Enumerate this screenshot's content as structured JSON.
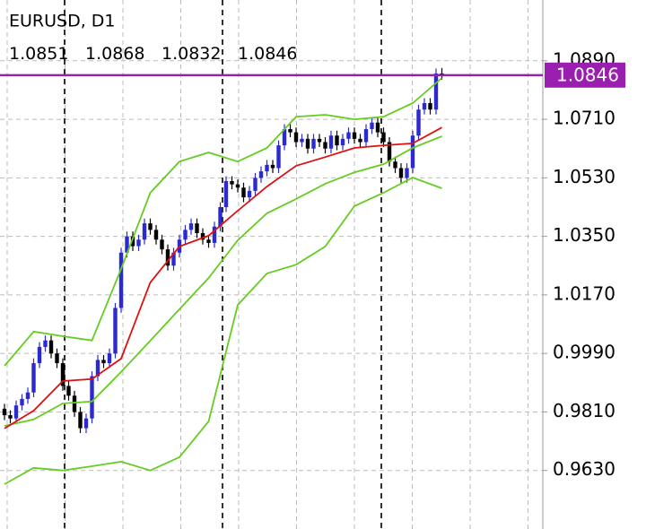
{
  "chart_data": {
    "type": "candlestick",
    "title": "EURUSD, D1",
    "ylim": [
      0.945,
      1.1077
    ],
    "yticks": [
      {
        "value": 1.089,
        "label": "1.0890"
      },
      {
        "value": 1.071,
        "label": "1.0710"
      },
      {
        "value": 1.053,
        "label": "1.0530"
      },
      {
        "value": 1.035,
        "label": "1.0350"
      },
      {
        "value": 1.017,
        "label": "1.0170"
      },
      {
        "value": 0.999,
        "label": "0.9990"
      },
      {
        "value": 0.981,
        "label": "0.9810"
      },
      {
        "value": 0.963,
        "label": "0.9630"
      }
    ],
    "grid": true,
    "up_color": "#2a2ad0",
    "down_color": "#000000",
    "price_line_color": "#9a1fb0",
    "open": [
      0.982,
      0.98,
      0.979,
      0.983,
      0.985,
      0.987,
      0.996,
      1.001,
      1.003,
      0.999,
      0.996,
      0.989,
      0.986,
      0.981,
      0.976,
      0.979,
      0.992,
      0.997,
      0.996,
      0.999,
      1.013,
      1.03,
      1.035,
      1.032,
      1.034,
      1.039,
      1.037,
      1.034,
      1.031,
      1.026,
      1.03,
      1.034,
      1.037,
      1.039,
      1.036,
      1.034,
      1.033,
      1.038,
      1.044,
      1.052,
      1.051,
      1.05,
      1.047,
      1.049,
      1.053,
      1.055,
      1.057,
      1.056,
      1.063,
      1.068,
      1.067,
      1.064,
      1.065,
      1.062,
      1.065,
      1.064,
      1.062,
      1.066,
      1.063,
      1.065,
      1.067,
      1.065,
      1.064,
      1.068,
      1.07,
      1.067,
      1.064,
      1.058,
      1.056,
      1.053,
      1.056,
      1.066,
      1.074,
      1.076,
      1.074,
      1.0851
    ],
    "high": [
      0.9835,
      0.9815,
      0.9845,
      0.9865,
      0.9885,
      0.9975,
      1.0025,
      1.0045,
      1.0045,
      1.0005,
      0.9975,
      0.9905,
      0.9875,
      0.9825,
      0.9805,
      0.9935,
      0.9985,
      0.9985,
      1.0005,
      1.0145,
      1.0315,
      1.0365,
      1.0365,
      1.0355,
      1.0405,
      1.0405,
      1.0385,
      1.0355,
      1.0325,
      1.0315,
      1.0355,
      1.0385,
      1.0405,
      1.0405,
      1.0375,
      1.0355,
      1.0395,
      1.0455,
      1.0535,
      1.0535,
      1.0525,
      1.0515,
      1.0505,
      1.0545,
      1.0565,
      1.0585,
      1.0585,
      1.0645,
      1.0695,
      1.0695,
      1.0685,
      1.0665,
      1.0665,
      1.0665,
      1.0665,
      1.0655,
      1.0675,
      1.0675,
      1.0665,
      1.0685,
      1.0685,
      1.0665,
      1.0695,
      1.0715,
      1.0715,
      1.0685,
      1.0655,
      1.0595,
      1.0575,
      1.0575,
      1.0675,
      1.0755,
      1.0775,
      1.0775,
      1.0866,
      1.0868
    ],
    "low": [
      0.9785,
      0.9775,
      0.9775,
      0.9815,
      0.9835,
      0.9855,
      0.9945,
      0.9995,
      0.9975,
      0.9945,
      0.9875,
      0.9845,
      0.9795,
      0.9745,
      0.9745,
      0.9775,
      0.9905,
      0.9945,
      0.9945,
      0.9975,
      1.0115,
      1.0285,
      1.0305,
      1.0305,
      1.0325,
      1.0355,
      1.0325,
      1.0295,
      1.0245,
      1.0245,
      1.0285,
      1.0325,
      1.0355,
      1.0345,
      1.0325,
      1.0315,
      1.0315,
      1.0365,
      1.0425,
      1.0495,
      1.0485,
      1.0455,
      1.0455,
      1.0475,
      1.0515,
      1.0535,
      1.0545,
      1.0545,
      1.0615,
      1.0655,
      1.0625,
      1.0625,
      1.0605,
      1.0605,
      1.0625,
      1.0605,
      1.0605,
      1.0615,
      1.0615,
      1.0635,
      1.0635,
      1.0625,
      1.0625,
      1.0665,
      1.0655,
      1.0625,
      1.0565,
      1.0545,
      1.0515,
      1.0515,
      1.0545,
      1.0645,
      1.0725,
      1.0725,
      1.0725,
      1.0832
    ],
    "close": [
      0.98,
      0.979,
      0.983,
      0.985,
      0.987,
      0.996,
      1.001,
      1.003,
      0.999,
      0.996,
      0.989,
      0.986,
      0.981,
      0.976,
      0.979,
      0.992,
      0.997,
      0.996,
      0.999,
      1.013,
      1.03,
      1.035,
      1.032,
      1.034,
      1.039,
      1.037,
      1.034,
      1.031,
      1.026,
      1.03,
      1.034,
      1.037,
      1.039,
      1.036,
      1.034,
      1.033,
      1.038,
      1.044,
      1.052,
      1.051,
      1.05,
      1.047,
      1.049,
      1.053,
      1.055,
      1.057,
      1.056,
      1.063,
      1.068,
      1.067,
      1.064,
      1.065,
      1.062,
      1.065,
      1.064,
      1.062,
      1.066,
      1.063,
      1.065,
      1.067,
      1.065,
      1.064,
      1.068,
      1.07,
      1.067,
      1.064,
      1.058,
      1.056,
      1.053,
      1.056,
      1.066,
      1.074,
      1.076,
      1.074,
      1.0851,
      1.0846
    ],
    "indicator_x": [
      0,
      5,
      10,
      15,
      20,
      25,
      30,
      35,
      40,
      45,
      50,
      55,
      60,
      65,
      70,
      75
    ],
    "indicators": [
      {
        "color": "#66cc22",
        "values": [
          0.9952,
          1.0057,
          1.0043,
          1.003,
          1.025,
          1.0484,
          1.058,
          1.0608,
          1.058,
          1.0622,
          1.0718,
          1.0724,
          1.071,
          1.0718,
          1.076,
          1.0837
        ]
      },
      {
        "color": "#66cc22",
        "values": [
          0.9767,
          0.9787,
          0.9836,
          0.9842,
          0.9933,
          1.0029,
          1.0126,
          1.0222,
          1.0338,
          1.0421,
          1.0465,
          1.0512,
          1.0547,
          1.0572,
          1.0622,
          1.0658
        ]
      },
      {
        "color": "#66cc22",
        "values": [
          0.9588,
          0.9638,
          0.963,
          0.9643,
          0.9657,
          0.963,
          0.9671,
          0.9781,
          1.0139,
          1.0236,
          1.0263,
          1.0319,
          1.0443,
          1.0484,
          1.0531,
          1.0498
        ]
      },
      {
        "color": "#dd1111",
        "values": [
          0.9759,
          0.9814,
          0.9905,
          0.9911,
          0.9974,
          1.0208,
          1.0319,
          1.0352,
          1.0429,
          1.0503,
          1.0567,
          1.0594,
          1.0622,
          1.063,
          1.0636,
          1.0685
        ]
      }
    ]
  }
}
